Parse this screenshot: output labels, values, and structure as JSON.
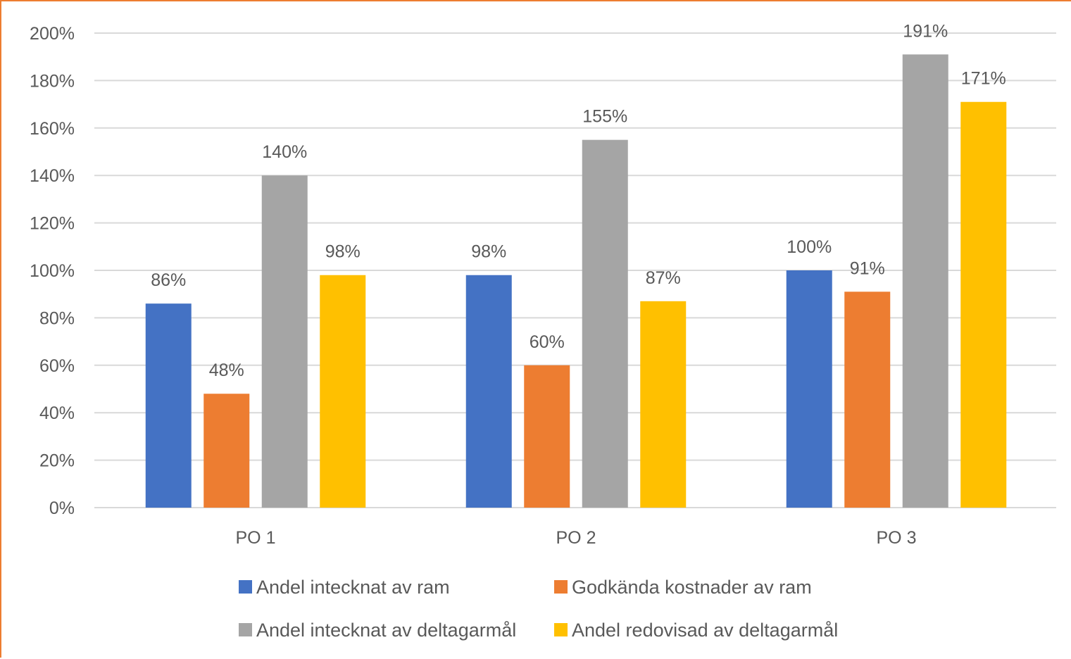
{
  "chart_data": {
    "type": "bar",
    "categories": [
      "PO 1",
      "PO 2",
      "PO 3"
    ],
    "series": [
      {
        "name": "Andel intecknat av ram",
        "values": [
          86,
          98,
          100
        ],
        "labels": [
          "86%",
          "98%",
          "100%"
        ],
        "color": "#4472C4"
      },
      {
        "name": "Godkända kostnader av ram",
        "values": [
          48,
          60,
          91
        ],
        "labels": [
          "48%",
          "60%",
          "91%"
        ],
        "color": "#ED7D31"
      },
      {
        "name": "Andel intecknat av deltagarmål",
        "values": [
          140,
          155,
          191
        ],
        "labels": [
          "140%",
          "155%",
          "191%"
        ],
        "color": "#A5A5A5"
      },
      {
        "name": "Andel redovisad av deltagarmål",
        "values": [
          98,
          87,
          171
        ],
        "labels": [
          "98%",
          "87%",
          "171%"
        ],
        "color": "#FFC000"
      }
    ],
    "ylim": [
      0,
      200
    ],
    "yticks": [
      0,
      20,
      40,
      60,
      80,
      100,
      120,
      140,
      160,
      180,
      200
    ],
    "ytick_labels": [
      "0%",
      "20%",
      "40%",
      "60%",
      "80%",
      "100%",
      "120%",
      "140%",
      "160%",
      "180%",
      "200%"
    ],
    "grid": true,
    "legend_position": "bottom",
    "title": "",
    "xlabel": "",
    "ylabel": ""
  },
  "colors": {
    "frame_border": "#ED7D31",
    "gridline": "#D9D9D9",
    "text": "#595959"
  }
}
